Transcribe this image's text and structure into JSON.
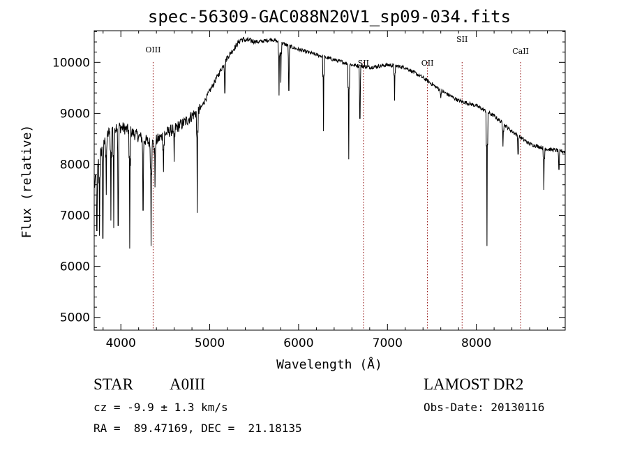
{
  "chart_data": {
    "type": "line",
    "title": "spec-56309-GAC088N20V1_sp09-034.fits",
    "xlabel": "Wavelength (Å)",
    "ylabel": "Flux (relative)",
    "xlim": [
      3700,
      9000
    ],
    "ylim": [
      4750,
      10620
    ],
    "xticks": [
      4000,
      5000,
      6000,
      7000,
      8000
    ],
    "yticks": [
      5000,
      6000,
      7000,
      8000,
      9000,
      10000
    ],
    "grid": false,
    "continuum": [
      [
        3700,
        7550
      ],
      [
        3760,
        8150
      ],
      [
        3850,
        8600
      ],
      [
        3950,
        8750
      ],
      [
        4050,
        8700
      ],
      [
        4200,
        8550
      ],
      [
        4350,
        8400
      ],
      [
        4500,
        8600
      ],
      [
        4700,
        8800
      ],
      [
        4900,
        9100
      ],
      [
        5050,
        9600
      ],
      [
        5200,
        10100
      ],
      [
        5350,
        10450
      ],
      [
        5550,
        10400
      ],
      [
        5700,
        10450
      ],
      [
        5850,
        10350
      ],
      [
        6000,
        10250
      ],
      [
        6200,
        10150
      ],
      [
        6400,
        10050
      ],
      [
        6600,
        9950
      ],
      [
        6800,
        9900
      ],
      [
        7000,
        9950
      ],
      [
        7200,
        9900
      ],
      [
        7400,
        9700
      ],
      [
        7600,
        9450
      ],
      [
        7800,
        9250
      ],
      [
        8000,
        9150
      ],
      [
        8200,
        8950
      ],
      [
        8400,
        8650
      ],
      [
        8600,
        8400
      ],
      [
        8800,
        8300
      ],
      [
        9000,
        8250
      ]
    ],
    "absorption_lines": [
      [
        3730,
        6700
      ],
      [
        3760,
        6600
      ],
      [
        3798,
        6550
      ],
      [
        3835,
        7400
      ],
      [
        3889,
        6900
      ],
      [
        3920,
        6750
      ],
      [
        3970,
        6800
      ],
      [
        4101,
        6350
      ],
      [
        4250,
        7100
      ],
      [
        4340,
        6400
      ],
      [
        4383,
        7550
      ],
      [
        4481,
        7850
      ],
      [
        4600,
        8050
      ],
      [
        4861,
        7050
      ],
      [
        5170,
        9400
      ],
      [
        5780,
        9350
      ],
      [
        5800,
        9600
      ],
      [
        5890,
        9450
      ],
      [
        6280,
        8650
      ],
      [
        6563,
        8100
      ],
      [
        6690,
        8900
      ],
      [
        7080,
        9250
      ],
      [
        7600,
        9300
      ],
      [
        8120,
        6400
      ],
      [
        8300,
        8350
      ],
      [
        8470,
        8200
      ],
      [
        8760,
        7500
      ],
      [
        8930,
        7900
      ]
    ],
    "series": [
      {
        "name": "",
        "color": "#000000"
      }
    ],
    "spectral_lines": [
      {
        "label": "OIII",
        "wavelength": 4363,
        "color": "#8b0000"
      },
      {
        "label": "SII",
        "wavelength": 6730,
        "color": "#8b0000"
      },
      {
        "label": "OII",
        "wavelength": 7450,
        "color": "#8b0000"
      },
      {
        "label": "SII",
        "wavelength": 7840,
        "color": "#8b0000"
      },
      {
        "label": "CaII",
        "wavelength": 8498,
        "color": "#8b0000"
      }
    ]
  },
  "info": {
    "object_type": "STAR",
    "spectral_class": "A0III",
    "survey": "LAMOST DR2",
    "redshift": "cz = -9.9 ± 1.3 km/s",
    "obs_date": "Obs-Date: 20130116",
    "coords": "RA =  89.47169, DEC =  21.18135"
  }
}
